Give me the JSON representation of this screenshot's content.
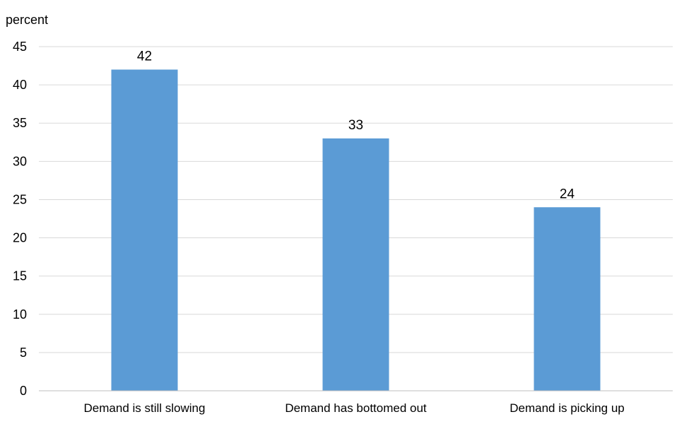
{
  "chart_data": {
    "type": "bar",
    "title": "",
    "xlabel": "",
    "ylabel": "percent",
    "categories": [
      "Demand is still slowing",
      "Demand has bottomed out",
      "Demand is picking up"
    ],
    "values": [
      42,
      33,
      24
    ],
    "data_labels": [
      "42",
      "33",
      "24"
    ],
    "ylim": [
      0,
      45
    ],
    "yticks": [
      0,
      5,
      10,
      15,
      20,
      25,
      30,
      35,
      40,
      45
    ],
    "ytick_labels": [
      "0",
      "5",
      "10",
      "15",
      "20",
      "25",
      "30",
      "35",
      "40",
      "45"
    ],
    "grid": true,
    "legend": "none",
    "bar_color": "#5b9bd5"
  }
}
